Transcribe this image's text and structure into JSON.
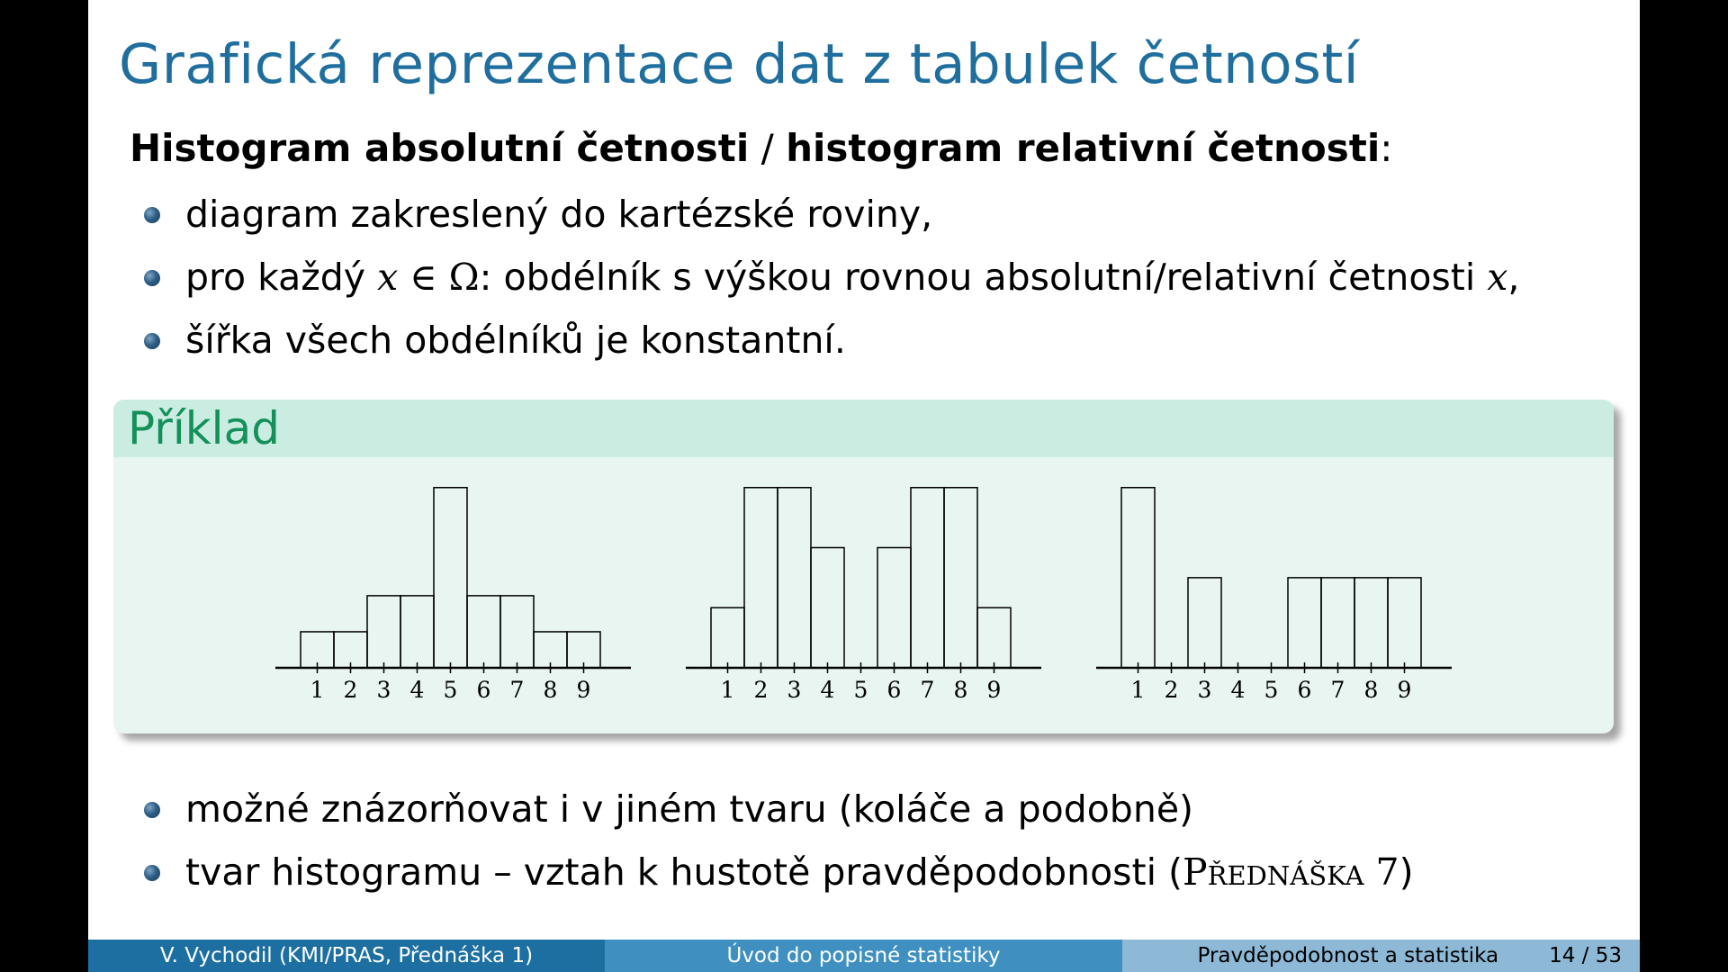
{
  "title": "Grafická reprezentace dat z tabulek četností",
  "subtitle": {
    "part1": "Histogram absolutní četnosti",
    "sep": " / ",
    "part2": "histogram relativní četnosti",
    "colon": ":"
  },
  "bullets_top": [
    {
      "text": "diagram zakreslený do kartézské roviny,"
    },
    {
      "pre": "pro každý ",
      "m1": "x",
      "m2": " ∈ Ω",
      "mid": ": obdélník s výškou rovnou absolutní/relativní četnosti ",
      "m3": "x",
      "post": ","
    },
    {
      "text": "šířka všech obdélníků je konstantní."
    }
  ],
  "block_title": "Příklad",
  "chart_data": [
    {
      "type": "bar",
      "categories": [
        "1",
        "2",
        "3",
        "4",
        "5",
        "6",
        "7",
        "8",
        "9"
      ],
      "values": [
        1.5,
        1.5,
        3,
        3,
        7.5,
        3,
        3,
        1.5,
        1.5
      ],
      "title": "",
      "xlabel": "",
      "ylabel": ""
    },
    {
      "type": "bar",
      "categories": [
        "1",
        "2",
        "3",
        "4",
        "5",
        "6",
        "7",
        "8",
        "9"
      ],
      "values": [
        2.5,
        7.5,
        7.5,
        5,
        0,
        5,
        7.5,
        7.5,
        2.5
      ],
      "title": "",
      "xlabel": "",
      "ylabel": ""
    },
    {
      "type": "bar",
      "categories": [
        "1",
        "2",
        "3",
        "4",
        "5",
        "6",
        "7",
        "8",
        "9"
      ],
      "values": [
        7.5,
        0,
        3.75,
        0,
        0,
        3.75,
        3.75,
        3.75,
        3.75
      ],
      "title": "",
      "xlabel": "",
      "ylabel": ""
    }
  ],
  "bullets_bottom": [
    {
      "text": "možné znázorňovat i v jiném tvaru (koláče a podobně)"
    },
    {
      "pre": "tvar histogramu – vztah k hustotě pravděpodobnosti (",
      "sc": "Přednáška",
      "num": " 7",
      "post": ")"
    }
  ],
  "footer": {
    "left": "V. Vychodil  (KMI/PRAS, Přednáška 1)",
    "center": "Úvod do popisné statistiky",
    "right": "Pravděpodobnost a statistika",
    "page": "14 / 53"
  }
}
